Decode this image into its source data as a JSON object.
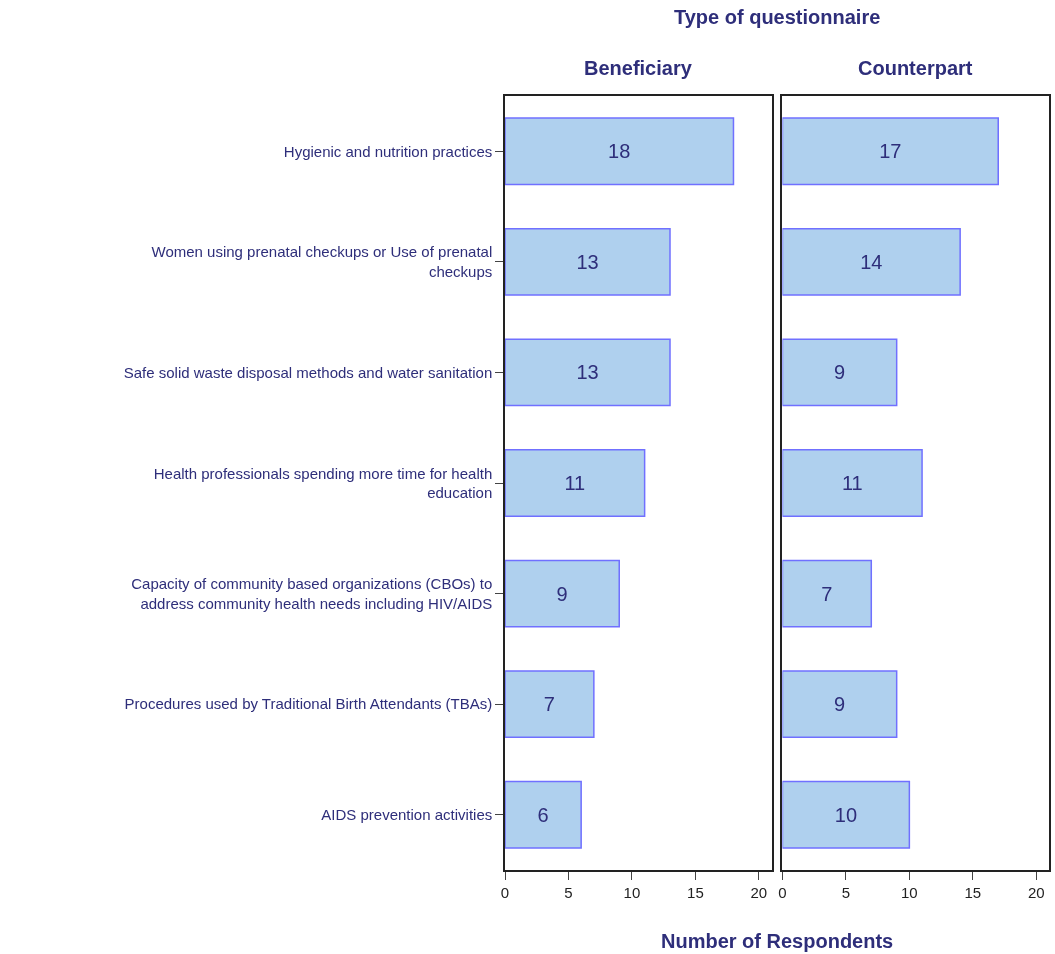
{
  "chart_data": [
    {
      "type": "bar",
      "orientation": "horizontal",
      "title": "Type of questionnaire",
      "subtitle": "Beneficiary",
      "xlabel": "Number of Respondents",
      "categories": [
        "Hygienic and nutrition practices",
        "Women using prenatal checkups or Use of prenatal checkups",
        "Safe solid waste disposal methods and water sanitation",
        "Health professionals spending more time for health education",
        "Capacity of community based organizations (CBOs) to address community health needs including HIV/AIDS",
        "Procedures used by Traditional Birth Attendants (TBAs)",
        "AIDS prevention activities"
      ],
      "values": [
        18,
        13,
        13,
        11,
        9,
        7,
        6
      ],
      "color": "#afd0ee",
      "data_labels": true,
      "xlim": [
        0,
        21
      ],
      "xticks": [
        0,
        5,
        10,
        15,
        20
      ]
    },
    {
      "type": "bar",
      "orientation": "horizontal",
      "subtitle": "Counterpart",
      "categories": [
        "Hygienic and nutrition practices",
        "Women using prenatal checkups or Use of prenatal checkups",
        "Safe solid waste disposal methods and water sanitation",
        "Health professionals spending more time for health education",
        "Capacity of community based organizations (CBOs) to address community health needs including HIV/AIDS",
        "Procedures used by Traditional Birth Attendants (TBAs)",
        "AIDS prevention activities"
      ],
      "values": [
        17,
        14,
        9,
        11,
        7,
        9,
        10
      ],
      "color": "#afd0ee",
      "data_labels": true,
      "xlim": [
        0,
        21
      ],
      "xticks": [
        0,
        5,
        10,
        15,
        20
      ],
      "tick_labels": "x"
    }
  ]
}
